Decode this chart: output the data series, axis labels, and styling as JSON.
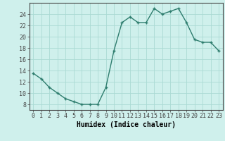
{
  "x": [
    0,
    1,
    2,
    3,
    4,
    5,
    6,
    7,
    8,
    9,
    10,
    11,
    12,
    13,
    14,
    15,
    16,
    17,
    18,
    19,
    20,
    21,
    22,
    23
  ],
  "y": [
    13.5,
    12.5,
    11,
    10,
    9,
    8.5,
    8,
    8,
    8,
    11,
    17.5,
    22.5,
    23.5,
    22.5,
    22.5,
    25,
    24,
    24.5,
    25,
    22.5,
    19.5,
    19,
    19,
    17.5
  ],
  "line_color": "#2e7d6e",
  "marker": "+",
  "marker_size": 3.5,
  "marker_lw": 1.0,
  "line_width": 1.0,
  "bg_color": "#cff0ec",
  "grid_color": "#aadad4",
  "xlabel": "Humidex (Indice chaleur)",
  "xlim": [
    -0.5,
    23.5
  ],
  "ylim": [
    7,
    26
  ],
  "yticks": [
    8,
    10,
    12,
    14,
    16,
    18,
    20,
    22,
    24
  ],
  "xticks": [
    0,
    1,
    2,
    3,
    4,
    5,
    6,
    7,
    8,
    9,
    10,
    11,
    12,
    13,
    14,
    15,
    16,
    17,
    18,
    19,
    20,
    21,
    22,
    23
  ],
  "xtick_labels": [
    "0",
    "1",
    "2",
    "3",
    "4",
    "5",
    "6",
    "7",
    "8",
    "9",
    "10",
    "11",
    "12",
    "13",
    "14",
    "15",
    "16",
    "17",
    "18",
    "19",
    "20",
    "21",
    "22",
    "23"
  ],
  "axis_color": "#444444",
  "label_fontsize": 7,
  "tick_fontsize": 6
}
